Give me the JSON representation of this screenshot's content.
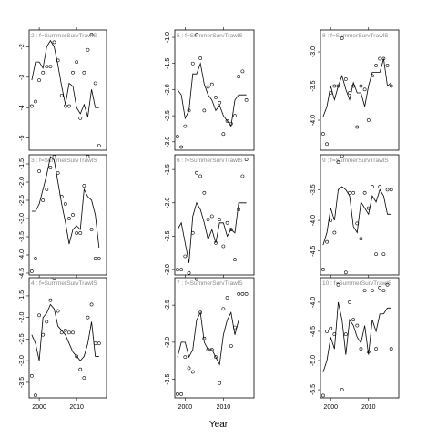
{
  "xlabel": "Year",
  "chart_data": [
    {
      "type": "scatter",
      "strip": "2 : f=SummerSurvTrawlS",
      "x": [
        1998,
        1999,
        2000,
        2001,
        2002,
        2003,
        2004,
        2005,
        2006,
        2007,
        2008,
        2009,
        2010,
        2011,
        2012,
        2013,
        2014,
        2015,
        2016
      ],
      "xlim": [
        1997.3,
        2018
      ],
      "xticks": [
        2000,
        2010
      ],
      "ylim": [
        -5.4,
        -1.45
      ],
      "yticks": [
        -2,
        -3,
        -4,
        -5
      ],
      "series": [
        {
          "name": "observed",
          "values": [
            -3.95,
            -3.8,
            -3.1,
            -2.85,
            -2.65,
            -2.65,
            -1.85,
            -2.45,
            -3.6,
            -3.95,
            -3.95,
            -2.85,
            -2.5,
            -4.35,
            -2.85,
            -2.1,
            -1.6,
            -3.2,
            -5.25
          ]
        },
        {
          "name": "fitted",
          "values": [
            -3.1,
            -2.5,
            -2.5,
            -2.7,
            -2.0,
            -1.8,
            -2.0,
            -2.6,
            -3.3,
            -3.9,
            -3.2,
            -3.3,
            -4.0,
            -4.2,
            -3.9,
            -4.3,
            -3.4,
            -4.0,
            -4.0
          ]
        }
      ]
    },
    {
      "type": "scatter",
      "strip": "5 : f=SummerSurvTrawlS",
      "x": [
        1998,
        1999,
        2000,
        2001,
        2002,
        2003,
        2004,
        2005,
        2006,
        2007,
        2008,
        2009,
        2010,
        2011,
        2012,
        2013,
        2014,
        2015,
        2016
      ],
      "xlim": [
        1997.3,
        2018
      ],
      "xticks": [
        2000,
        2010
      ],
      "ylim": [
        -3.16,
        -0.86
      ],
      "yticks": [
        {
          "value": -1,
          "label": "-1.0"
        },
        -1.5,
        {
          "value": -2,
          "label": "-2.0"
        },
        -2.5,
        {
          "value": -3,
          "label": "-3.0"
        }
      ],
      "series": [
        {
          "name": "observed",
          "values": [
            -2.9,
            -3.1,
            -2.7,
            -2.4,
            -1.5,
            -0.95,
            -1.4,
            -2.4,
            -1.95,
            -1.9,
            -2.15,
            -2.25,
            -2.85,
            -2.6,
            -2.65,
            -2.5,
            -1.75,
            -1.65,
            -2.2
          ]
        },
        {
          "name": "fitted",
          "values": [
            -2.0,
            -2.1,
            -2.55,
            -2.4,
            -1.7,
            -1.7,
            -1.5,
            -1.9,
            -2.1,
            -2.2,
            -2.4,
            -2.3,
            -2.5,
            -2.6,
            -2.7,
            -2.2,
            -2.1,
            -2.1,
            -2.1
          ]
        }
      ]
    },
    {
      "type": "scatter",
      "strip": "8 : f=SummerSurvTrawlS",
      "x": [
        1998,
        1999,
        2000,
        2001,
        2002,
        2003,
        2004,
        2005,
        2006,
        2007,
        2008,
        2009,
        2010,
        2011,
        2012,
        2013,
        2014,
        2015,
        2016
      ],
      "xlim": [
        1997.3,
        2018
      ],
      "xticks": [
        2000,
        2010
      ],
      "ylim": [
        -4.44,
        -2.68
      ],
      "yticks": [
        {
          "value": -3,
          "label": "-3.0"
        },
        -3.5,
        {
          "value": -4,
          "label": "-4.0"
        }
      ],
      "series": [
        {
          "name": "observed",
          "values": [
            -4.2,
            -4.35,
            -3.6,
            -3.5,
            -3.5,
            -2.8,
            -3.4,
            -3.6,
            -3.5,
            -4.1,
            -3.5,
            -3.55,
            -4.0,
            -3.35,
            -3.2,
            -3.1,
            -3.1,
            -3.2,
            -3.5
          ]
        },
        {
          "name": "fitted",
          "values": [
            -3.95,
            -3.8,
            -3.5,
            -3.7,
            -3.5,
            -3.35,
            -3.55,
            -3.7,
            -3.45,
            -3.6,
            -3.6,
            -3.8,
            -3.5,
            -3.3,
            -3.3,
            -3.3,
            -3.1,
            -3.5,
            -3.45
          ]
        }
      ]
    },
    {
      "type": "scatter",
      "strip": "3 : f=SummerSurvTrawlS",
      "x": [
        1998,
        1999,
        2000,
        2001,
        2002,
        2003,
        2004,
        2005,
        2006,
        2007,
        2008,
        2009,
        2010,
        2011,
        2012,
        2013,
        2014,
        2015,
        2016
      ],
      "xlim": [
        1997.3,
        2018
      ],
      "xticks": [
        2000,
        2010
      ],
      "ylim": [
        -4.55,
        -1.25
      ],
      "yticks": [
        -1.5,
        {
          "value": -2,
          "label": "-2.0"
        },
        -2.5,
        {
          "value": -3,
          "label": "-3.0"
        },
        -3.5,
        {
          "value": -4,
          "label": "-4.0"
        },
        -4.5
      ],
      "series": [
        {
          "name": "observed",
          "values": [
            -4.45,
            -4.1,
            -1.7,
            -2.5,
            -2.2,
            -1.6,
            -1.3,
            -1.75,
            -2.4,
            -2.6,
            -3.0,
            -2.9,
            -3.4,
            -3.4,
            -2.1,
            -1.3,
            -3.3,
            -4.1,
            -4.1
          ]
        },
        {
          "name": "fitted",
          "values": [
            -2.8,
            -2.8,
            -2.6,
            -2.2,
            -1.8,
            -1.3,
            -1.4,
            -2.0,
            -2.6,
            -3.1,
            -3.7,
            -3.3,
            -3.2,
            -3.3,
            -2.2,
            -2.4,
            -2.5,
            -2.9,
            -3.8
          ]
        }
      ]
    },
    {
      "type": "scatter",
      "strip": "6 : f=SummerSurvTrawlS",
      "x": [
        1998,
        1999,
        2000,
        2001,
        2002,
        2003,
        2004,
        2005,
        2006,
        2007,
        2008,
        2009,
        2010,
        2011,
        2012,
        2013,
        2014,
        2015,
        2016
      ],
      "xlim": [
        1997.3,
        2018
      ],
      "xticks": [
        2000,
        2010
      ],
      "ylim": [
        -3.08,
        -1.28
      ],
      "yticks": [
        -1.5,
        {
          "value": -2,
          "label": "-2.0"
        },
        -2.5,
        {
          "value": -3,
          "label": "-3.0"
        }
      ],
      "series": [
        {
          "name": "observed",
          "values": [
            -3.0,
            -3.0,
            -2.8,
            -3.05,
            -2.45,
            -1.55,
            -1.6,
            -1.85,
            -2.25,
            -2.2,
            -2.6,
            -2.25,
            -2.65,
            -2.3,
            -2.4,
            -2.85,
            -2.1,
            -1.6,
            -1.35
          ]
        },
        {
          "name": "fitted",
          "values": [
            -2.4,
            -2.3,
            -2.6,
            -2.9,
            -2.2,
            -2.0,
            -2.1,
            -2.3,
            -2.55,
            -2.4,
            -2.6,
            -2.3,
            -2.3,
            -2.5,
            -2.4,
            -2.45,
            -2.0,
            -2.0,
            -2.0
          ]
        }
      ]
    },
    {
      "type": "scatter",
      "strip": "9 : f=SummerSurvTrawlS",
      "x": [
        1998,
        1999,
        2000,
        2001,
        2002,
        2003,
        2004,
        2005,
        2006,
        2007,
        2008,
        2009,
        2010,
        2011,
        2012,
        2013,
        2014,
        2015,
        2016
      ],
      "xlim": [
        1997.3,
        2018
      ],
      "xticks": [
        2000,
        2010
      ],
      "ylim": [
        -4.89,
        -2.93
      ],
      "yticks": [
        -3.5,
        {
          "value": -4,
          "label": "-4.0"
        },
        -4.5
      ],
      "series": [
        {
          "name": "observed",
          "values": [
            -4.8,
            -4.35,
            -4.0,
            -4.2,
            -3.05,
            -2.95,
            -4.85,
            -3.55,
            -3.55,
            -4.05,
            -4.3,
            -3.55,
            -3.8,
            -3.45,
            -4.55,
            -3.45,
            -4.55,
            -3.5,
            -3.5
          ]
        },
        {
          "name": "fitted",
          "values": [
            -4.4,
            -4.2,
            -3.8,
            -4.0,
            -3.5,
            -3.45,
            -3.5,
            -3.6,
            -4.1,
            -4.2,
            -3.7,
            -3.8,
            -3.9,
            -3.6,
            -3.7,
            -3.5,
            -3.6,
            -3.9,
            -3.9
          ]
        }
      ]
    },
    {
      "type": "scatter",
      "strip": "4 : f=SummerSurvTrawlS",
      "x": [
        1998,
        1999,
        2000,
        2001,
        2002,
        2003,
        2004,
        2005,
        2006,
        2007,
        2008,
        2009,
        2010,
        2011,
        2012,
        2013,
        2014,
        2015,
        2016
      ],
      "xlim": [
        1997.3,
        2018
      ],
      "xticks": [
        2000,
        2010
      ],
      "ylim": [
        -3.86,
        -1.08
      ],
      "yticks": [
        -1.5,
        {
          "value": -2,
          "label": "-2.0"
        },
        -2.5,
        {
          "value": -3,
          "label": "-3.0"
        },
        -3.5
      ],
      "series": [
        {
          "name": "observed",
          "values": [
            -3.35,
            -3.8,
            -1.95,
            -2.4,
            -2.1,
            -1.6,
            -1.1,
            -1.85,
            -2.35,
            -2.3,
            -2.35,
            -2.35,
            -2.9,
            -3.2,
            -3.4,
            -2.0,
            -1.7,
            -2.6,
            -2.6
          ]
        },
        {
          "name": "fitted",
          "values": [
            -2.4,
            -2.6,
            -3.0,
            -2.0,
            -1.9,
            -1.7,
            -1.8,
            -2.2,
            -2.3,
            -2.4,
            -2.6,
            -2.8,
            -2.9,
            -3.0,
            -2.9,
            -2.6,
            -2.1,
            -2.9,
            -2.9
          ]
        }
      ]
    },
    {
      "type": "scatter",
      "strip": "7 : f=SummerSurvTrawlS",
      "x": [
        1998,
        1999,
        2000,
        2001,
        2002,
        2003,
        2004,
        2005,
        2006,
        2007,
        2008,
        2009,
        2010,
        2011,
        2012,
        2013,
        2014,
        2015,
        2016
      ],
      "xlim": [
        1997.3,
        2018
      ],
      "xticks": [
        2000,
        2010
      ],
      "ylim": [
        -3.75,
        -2.13
      ],
      "yticks": [
        -2.5,
        {
          "value": -3,
          "label": "-3.0"
        },
        -3.5
      ],
      "series": [
        {
          "name": "observed",
          "values": [
            -3.7,
            -3.7,
            -3.2,
            -3.35,
            -3.4,
            -2.15,
            -2.6,
            -2.95,
            -3.1,
            -3.1,
            -3.2,
            -3.55,
            -2.55,
            -2.4,
            -3.05,
            -2.8,
            -2.35,
            -2.35,
            -2.35
          ]
        },
        {
          "name": "fitted",
          "values": [
            -3.2,
            -3.0,
            -3.0,
            -3.2,
            -3.1,
            -2.7,
            -2.6,
            -3.0,
            -3.1,
            -3.1,
            -3.2,
            -3.3,
            -2.9,
            -2.7,
            -2.6,
            -2.9,
            -2.7,
            -2.7,
            -2.7
          ]
        }
      ]
    },
    {
      "type": "scatter",
      "strip": "10 : f=SummerSurvTrawlS",
      "x": [
        1998,
        1999,
        2000,
        2001,
        2002,
        2003,
        2004,
        2005,
        2006,
        2007,
        2008,
        2009,
        2010,
        2011,
        2012,
        2013,
        2014,
        2015,
        2016
      ],
      "xlim": [
        1997.3,
        2018
      ],
      "xticks": [
        2000,
        2010
      ],
      "ylim": [
        -5.64,
        -3.58
      ],
      "yticks": [
        {
          "value": -4,
          "label": "-4.0"
        },
        -4.5,
        {
          "value": -5,
          "label": "-5.0"
        },
        -5.5
      ],
      "series": [
        {
          "name": "observed",
          "values": [
            -5.6,
            -4.5,
            -4.45,
            -4.55,
            -3.7,
            -5.5,
            -4.55,
            -4.0,
            -4.3,
            -4.4,
            -4.8,
            -3.8,
            -4.85,
            -3.8,
            -4.8,
            -3.75,
            -3.8,
            -3.7,
            -4.8
          ]
        },
        {
          "name": "fitted",
          "values": [
            -5.2,
            -5.0,
            -4.6,
            -4.8,
            -4.0,
            -4.3,
            -4.9,
            -4.3,
            -4.4,
            -4.6,
            -4.7,
            -4.4,
            -4.9,
            -4.3,
            -4.5,
            -4.2,
            -4.2,
            -4.1,
            -4.1
          ]
        }
      ]
    }
  ]
}
